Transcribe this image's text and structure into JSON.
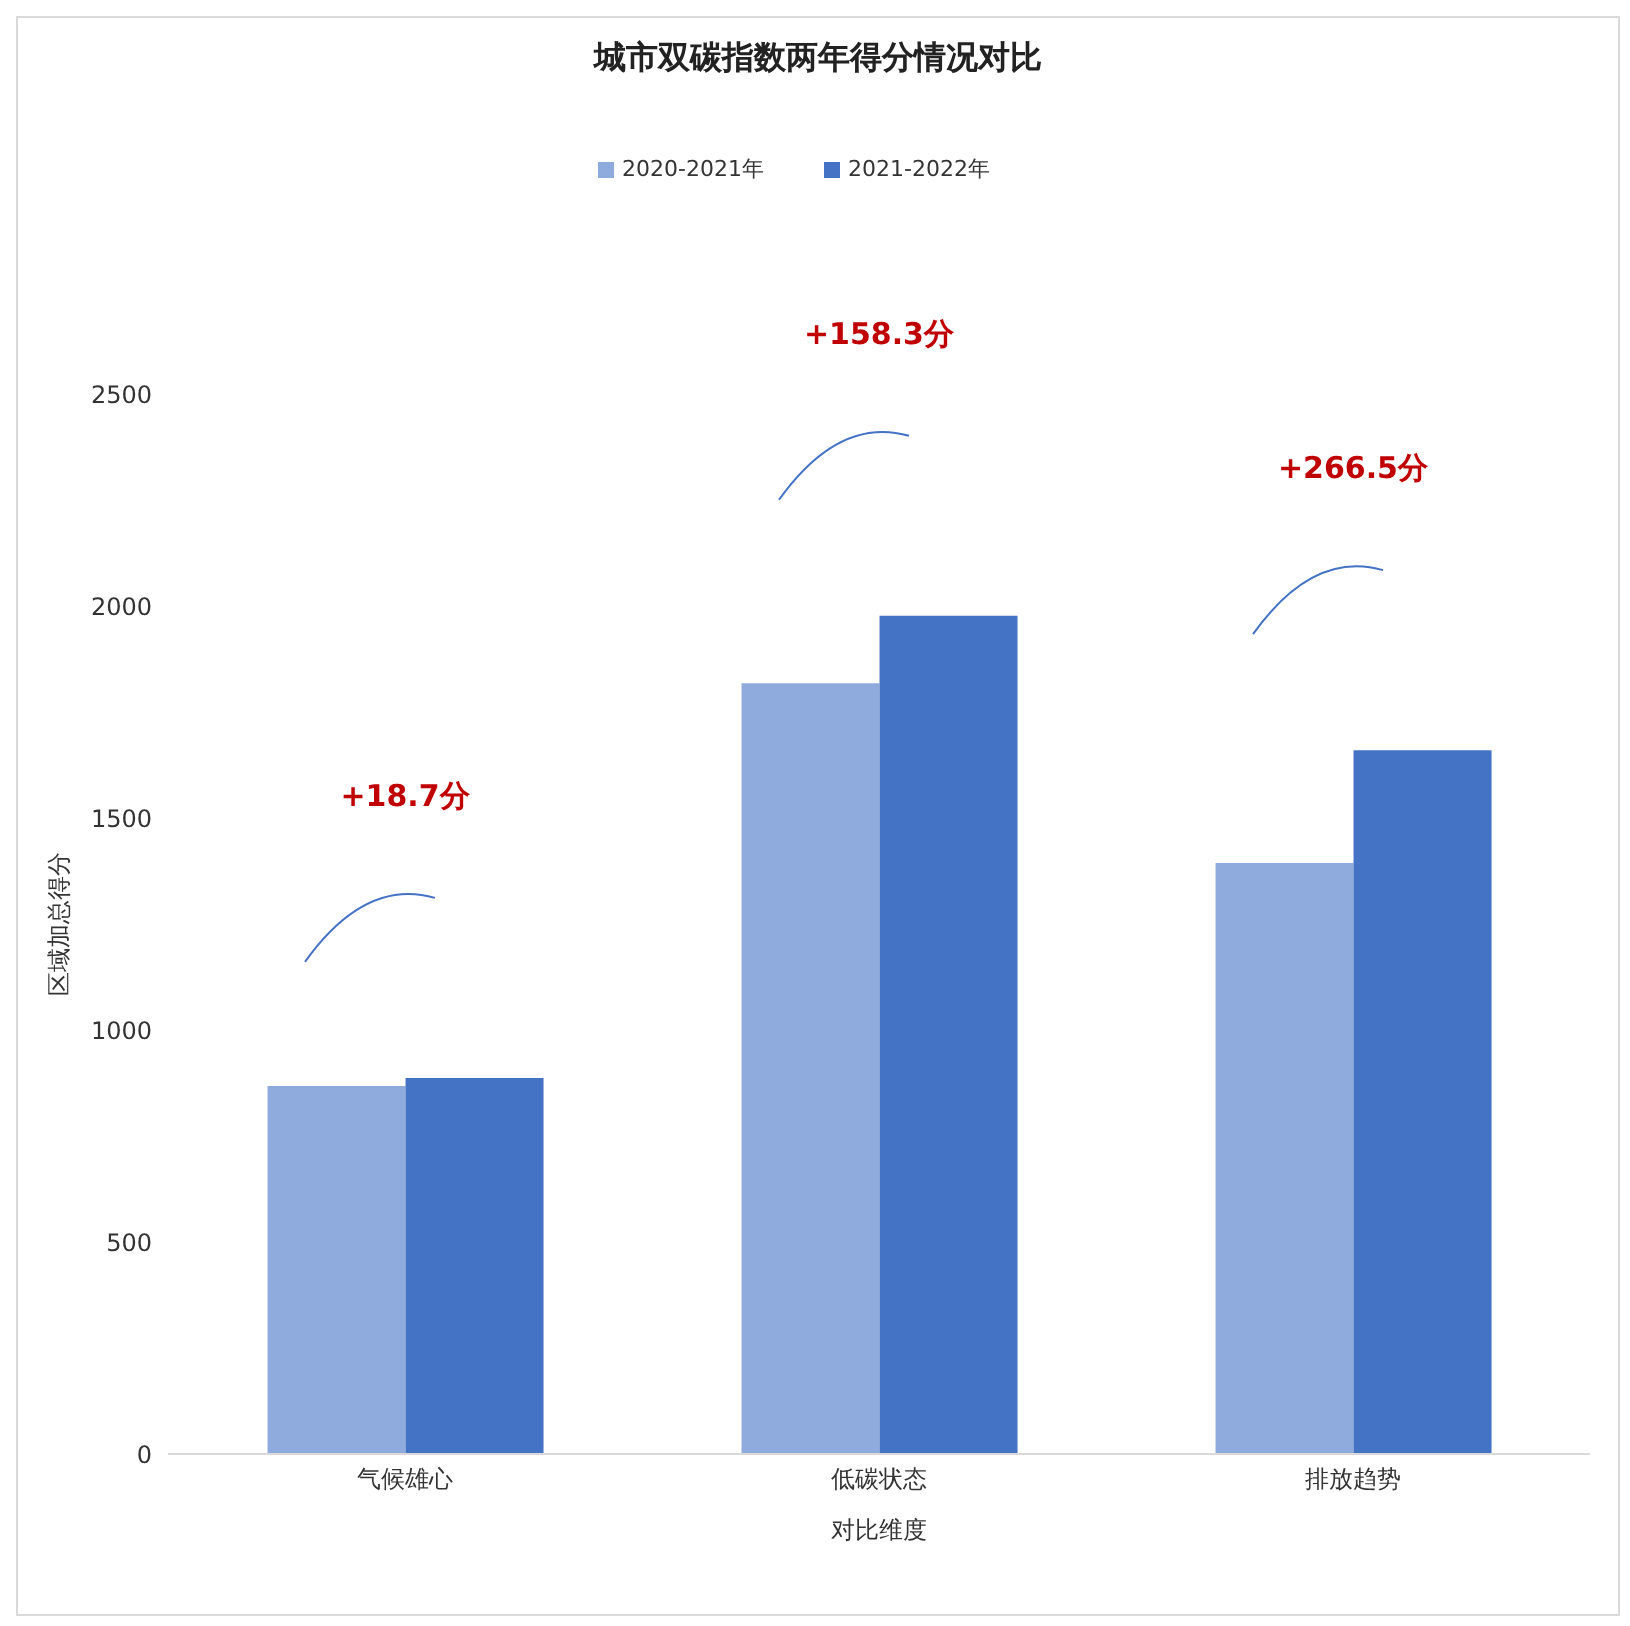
{
  "chart_data": {
    "type": "bar",
    "title": "城市双碳指数两年得分情况对比",
    "xlabel": "对比维度",
    "ylabel": "区域加总得分",
    "categories": [
      "气候雄心",
      "低碳状态",
      "排放趋势"
    ],
    "series": [
      {
        "name": "2020-2021年",
        "color": "#8faadc",
        "values": [
          868,
          1818,
          1394
        ]
      },
      {
        "name": "2021-2022年",
        "color": "#4472c4",
        "values": [
          887,
          1977,
          1660
        ]
      }
    ],
    "ylim": [
      0,
      2500
    ],
    "yticks": [
      0,
      500,
      1000,
      1500,
      2000,
      2500
    ],
    "grid": false,
    "legend": "top",
    "annotations": [
      "+18.7分",
      "+158.3分",
      "+266.5分"
    ]
  }
}
